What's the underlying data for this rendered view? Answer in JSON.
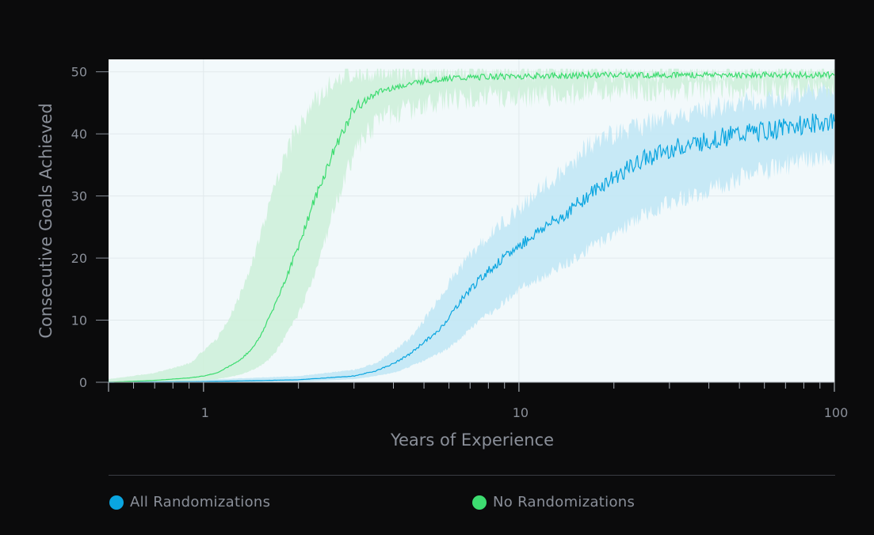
{
  "chart_data": {
    "type": "line",
    "xscale": "log",
    "xlabel": "Years of Experience",
    "ylabel": "Consecutive Goals Achieved",
    "xlim": [
      0.5,
      100
    ],
    "ylim": [
      0,
      52
    ],
    "xticks_major": [
      {
        "value": 1,
        "label": "1"
      },
      {
        "value": 10,
        "label": "10"
      },
      {
        "value": 100,
        "label": "100"
      }
    ],
    "xticks_minor": [
      0.6,
      0.7,
      0.8,
      0.9,
      2,
      3,
      4,
      5,
      6,
      7,
      8,
      9,
      20,
      30,
      40,
      50,
      60,
      70,
      80,
      90
    ],
    "yticks": [
      {
        "value": 0,
        "label": "0"
      },
      {
        "value": 10,
        "label": "10"
      },
      {
        "value": 20,
        "label": "20"
      },
      {
        "value": 30,
        "label": "30"
      },
      {
        "value": 40,
        "label": "40"
      },
      {
        "value": 50,
        "label": "50"
      }
    ],
    "grid": true,
    "legend_position": "bottom",
    "series": [
      {
        "name": "All Randomizations",
        "color": "#0aa5e0",
        "band_color": "#bfe6f5",
        "x": [
          0.5,
          1,
          2,
          3,
          3.5,
          4,
          4.5,
          5,
          5.5,
          6,
          6.5,
          7,
          7.5,
          8,
          9,
          10,
          12,
          14,
          16,
          18,
          20,
          25,
          30,
          40,
          50,
          60,
          70,
          80,
          90,
          100
        ],
        "y": [
          0,
          0.1,
          0.4,
          1,
          1.8,
          3,
          4.5,
          6.5,
          8,
          10.5,
          13,
          15,
          16.5,
          18,
          20,
          22,
          25,
          27,
          29.5,
          31.5,
          33,
          36,
          37.5,
          39,
          40,
          40.5,
          41,
          41.5,
          41.8,
          42
        ],
        "lower": [
          0,
          0,
          0.1,
          0.5,
          1,
          1.5,
          2.5,
          3.5,
          4.5,
          5.5,
          7,
          8.5,
          10,
          11,
          13,
          15,
          17,
          19,
          21,
          22.5,
          24,
          27,
          29,
          31,
          33,
          34,
          35,
          35.5,
          36,
          36.5
        ],
        "upper": [
          0.1,
          0.4,
          1,
          2,
          3,
          5,
          7,
          10,
          13,
          16,
          18.5,
          20.5,
          22,
          23.5,
          26,
          28,
          31.5,
          34,
          37.5,
          39,
          40,
          41.5,
          42.5,
          44,
          45,
          45.5,
          46,
          46.5,
          47,
          47.5
        ]
      },
      {
        "name": "No Randomizations",
        "color": "#3ddc70",
        "band_color": "#ccf0d8",
        "x": [
          0.5,
          0.7,
          0.9,
          1,
          1.1,
          1.2,
          1.3,
          1.4,
          1.5,
          1.6,
          1.7,
          1.8,
          1.9,
          2,
          2.2,
          2.4,
          2.6,
          2.8,
          3,
          3.5,
          4,
          5,
          6,
          7,
          8,
          10,
          15,
          20,
          30,
          50,
          70,
          100
        ],
        "y": [
          0,
          0.3,
          0.7,
          1,
          1.5,
          2.5,
          3.5,
          5,
          7,
          10,
          13,
          16,
          19,
          22,
          28,
          33,
          37.5,
          41,
          44,
          46.5,
          47.5,
          48.5,
          49,
          49,
          49.2,
          49.3,
          49.4,
          49.5,
          49.5,
          49.5,
          49.5,
          49.5
        ],
        "lower": [
          0,
          0,
          0.2,
          0.3,
          0.5,
          0.8,
          1.2,
          1.8,
          2.5,
          3.5,
          5,
          7,
          9,
          11,
          16,
          22,
          28,
          33,
          37,
          41.5,
          43.5,
          44.5,
          45.5,
          46,
          46,
          46,
          46.5,
          47,
          47,
          47,
          47.5,
          47.5
        ],
        "upper": [
          0.5,
          1.5,
          3,
          5,
          7,
          10,
          14,
          18,
          23,
          28,
          32,
          35.5,
          38.5,
          41,
          44.5,
          47,
          48.5,
          49.5,
          50,
          50,
          50,
          50,
          50,
          50,
          50,
          50,
          50,
          50,
          50,
          50,
          50,
          50
        ]
      }
    ]
  },
  "legend": {
    "items": [
      {
        "label": "All Randomizations",
        "color": "#0aa5e0"
      },
      {
        "label": "No Randomizations",
        "color": "#3ddc70"
      }
    ]
  }
}
